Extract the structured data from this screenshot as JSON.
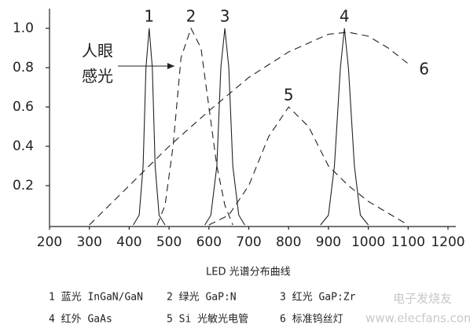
{
  "chart_data": {
    "type": "line",
    "caption": "LED  光谱分布曲线",
    "xlim": [
      200,
      1200
    ],
    "xticks": [
      200,
      300,
      400,
      500,
      600,
      700,
      800,
      900,
      1000,
      1100,
      1200
    ],
    "ylim": [
      0,
      1.1
    ],
    "yticks": [
      0.2,
      0.4,
      0.6,
      0.8,
      {
        "value": 1,
        "label": "1.0"
      }
    ],
    "series": [
      {
        "name": "1",
        "color": "#222222",
        "dashed": false,
        "x": [
          410,
          425,
          435,
          442,
          450,
          458,
          465,
          475,
          490
        ],
        "values": [
          0,
          0.05,
          0.3,
          0.8,
          1,
          0.8,
          0.3,
          0.05,
          0
        ]
      },
      {
        "name": "2",
        "color": "#222222",
        "dashed": true,
        "x": [
          470,
          490,
          510,
          530,
          555,
          580,
          600,
          620,
          640,
          660
        ],
        "values": [
          0,
          0.1,
          0.4,
          0.85,
          1,
          0.9,
          0.6,
          0.3,
          0.1,
          0
        ]
      },
      {
        "name": "3",
        "color": "#222222",
        "dashed": false,
        "x": [
          590,
          605,
          620,
          630,
          640,
          650,
          660,
          675,
          690
        ],
        "values": [
          0,
          0.05,
          0.3,
          0.8,
          1,
          0.8,
          0.3,
          0.05,
          0
        ]
      },
      {
        "name": "4",
        "color": "#222222",
        "dashed": false,
        "x": [
          880,
          900,
          915,
          930,
          940,
          950,
          965,
          980,
          1000
        ],
        "values": [
          0,
          0.05,
          0.3,
          0.8,
          1,
          0.8,
          0.3,
          0.05,
          0
        ]
      },
      {
        "name": "5",
        "color": "#222222",
        "dashed": true,
        "x": [
          600,
          650,
          700,
          750,
          800,
          850,
          900,
          950,
          1000,
          1050,
          1100
        ],
        "values": [
          0,
          0.05,
          0.2,
          0.45,
          0.6,
          0.5,
          0.3,
          0.2,
          0.12,
          0.06,
          0
        ]
      },
      {
        "name": "6",
        "color": "#222222",
        "dashed": true,
        "x": [
          300,
          400,
          500,
          600,
          700,
          800,
          900,
          950,
          1000,
          1050,
          1100
        ],
        "values": [
          0,
          0.2,
          0.4,
          0.58,
          0.75,
          0.88,
          0.97,
          0.98,
          0.96,
          0.9,
          0.82
        ]
      }
    ],
    "annotation": [
      "人眼",
      "感光"
    ],
    "legend": [
      "1 蓝光 InGaN/GaN",
      "2 绿光 GaP:N",
      "3 红光 GaP:Zr",
      "4 红外 GaAs",
      "5 Si 光敏光电管",
      "6 标准钨丝灯"
    ],
    "watermark": [
      "电子发烧友",
      "www.elecfans.com"
    ]
  }
}
